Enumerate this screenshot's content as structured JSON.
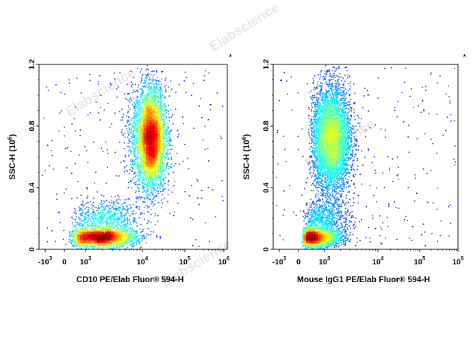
{
  "watermark": "Elabscience",
  "chart_data": [
    {
      "type": "scatter",
      "subtype": "density-dot-plot",
      "xlabel": "CD10 PE/Elab Fluor® 594-H",
      "ylabel": "SSC-H (10",
      "ylabel_sup": "6",
      "ylabel_close": ")",
      "xscale": "biexponential",
      "xticks": [
        {
          "base": "-10",
          "exp": "3",
          "value": -1000
        },
        {
          "base": "0",
          "exp": "",
          "value": 0
        },
        {
          "base": "10",
          "exp": "3",
          "value": 1000
        },
        {
          "base": "10",
          "exp": "4",
          "value": 10000
        },
        {
          "base": "10",
          "exp": "5",
          "value": 100000
        },
        {
          "base": "10",
          "exp": "6",
          "value": 1000000
        }
      ],
      "yticks": [
        "0",
        "0.4",
        "0.8",
        "1.2"
      ],
      "ylim": [
        0,
        1.2
      ],
      "corner_mark": "*",
      "populations": [
        {
          "name": "",
          "x": 15000,
          "y": 0.72,
          "sx_log": 0.18,
          "sy": 0.16,
          "count": 5200
        },
        {
          "name": "",
          "x": 1800,
          "y": 0.08,
          "sx_log": 0.3,
          "sy": 0.03,
          "count": 2600
        },
        {
          "name": "",
          "x": 2200,
          "y": 0.2,
          "sx_log": 0.28,
          "sy": 0.06,
          "count": 700
        }
      ]
    },
    {
      "type": "scatter",
      "subtype": "density-dot-plot",
      "xlabel": "Mouse IgG1 PE/Elab Fluor® 594-H",
      "ylabel": "SSC-H (10",
      "ylabel_sup": "6",
      "ylabel_close": ")",
      "xscale": "biexponential",
      "xticks": [
        {
          "base": "-10",
          "exp": "3",
          "value": -1000
        },
        {
          "base": "0",
          "exp": "",
          "value": 0
        },
        {
          "base": "10",
          "exp": "3",
          "value": 1000
        },
        {
          "base": "10",
          "exp": "4",
          "value": 10000
        },
        {
          "base": "10",
          "exp": "5",
          "value": 100000
        },
        {
          "base": "10",
          "exp": "6",
          "value": 1000000
        }
      ],
      "yticks": [
        "0",
        "0.4",
        "0.8",
        "1.2"
      ],
      "ylim": [
        0,
        1.2
      ],
      "corner_mark": "*",
      "populations": [
        {
          "name": "",
          "x": 1300,
          "y": 0.72,
          "sx_log": 0.18,
          "sy": 0.17,
          "count": 5400
        },
        {
          "name": "",
          "x": 600,
          "y": 0.08,
          "sx_log": 0.25,
          "sy": 0.03,
          "count": 2600
        },
        {
          "name": "",
          "x": 1000,
          "y": 0.2,
          "sx_log": 0.25,
          "sy": 0.06,
          "count": 700
        }
      ]
    }
  ]
}
